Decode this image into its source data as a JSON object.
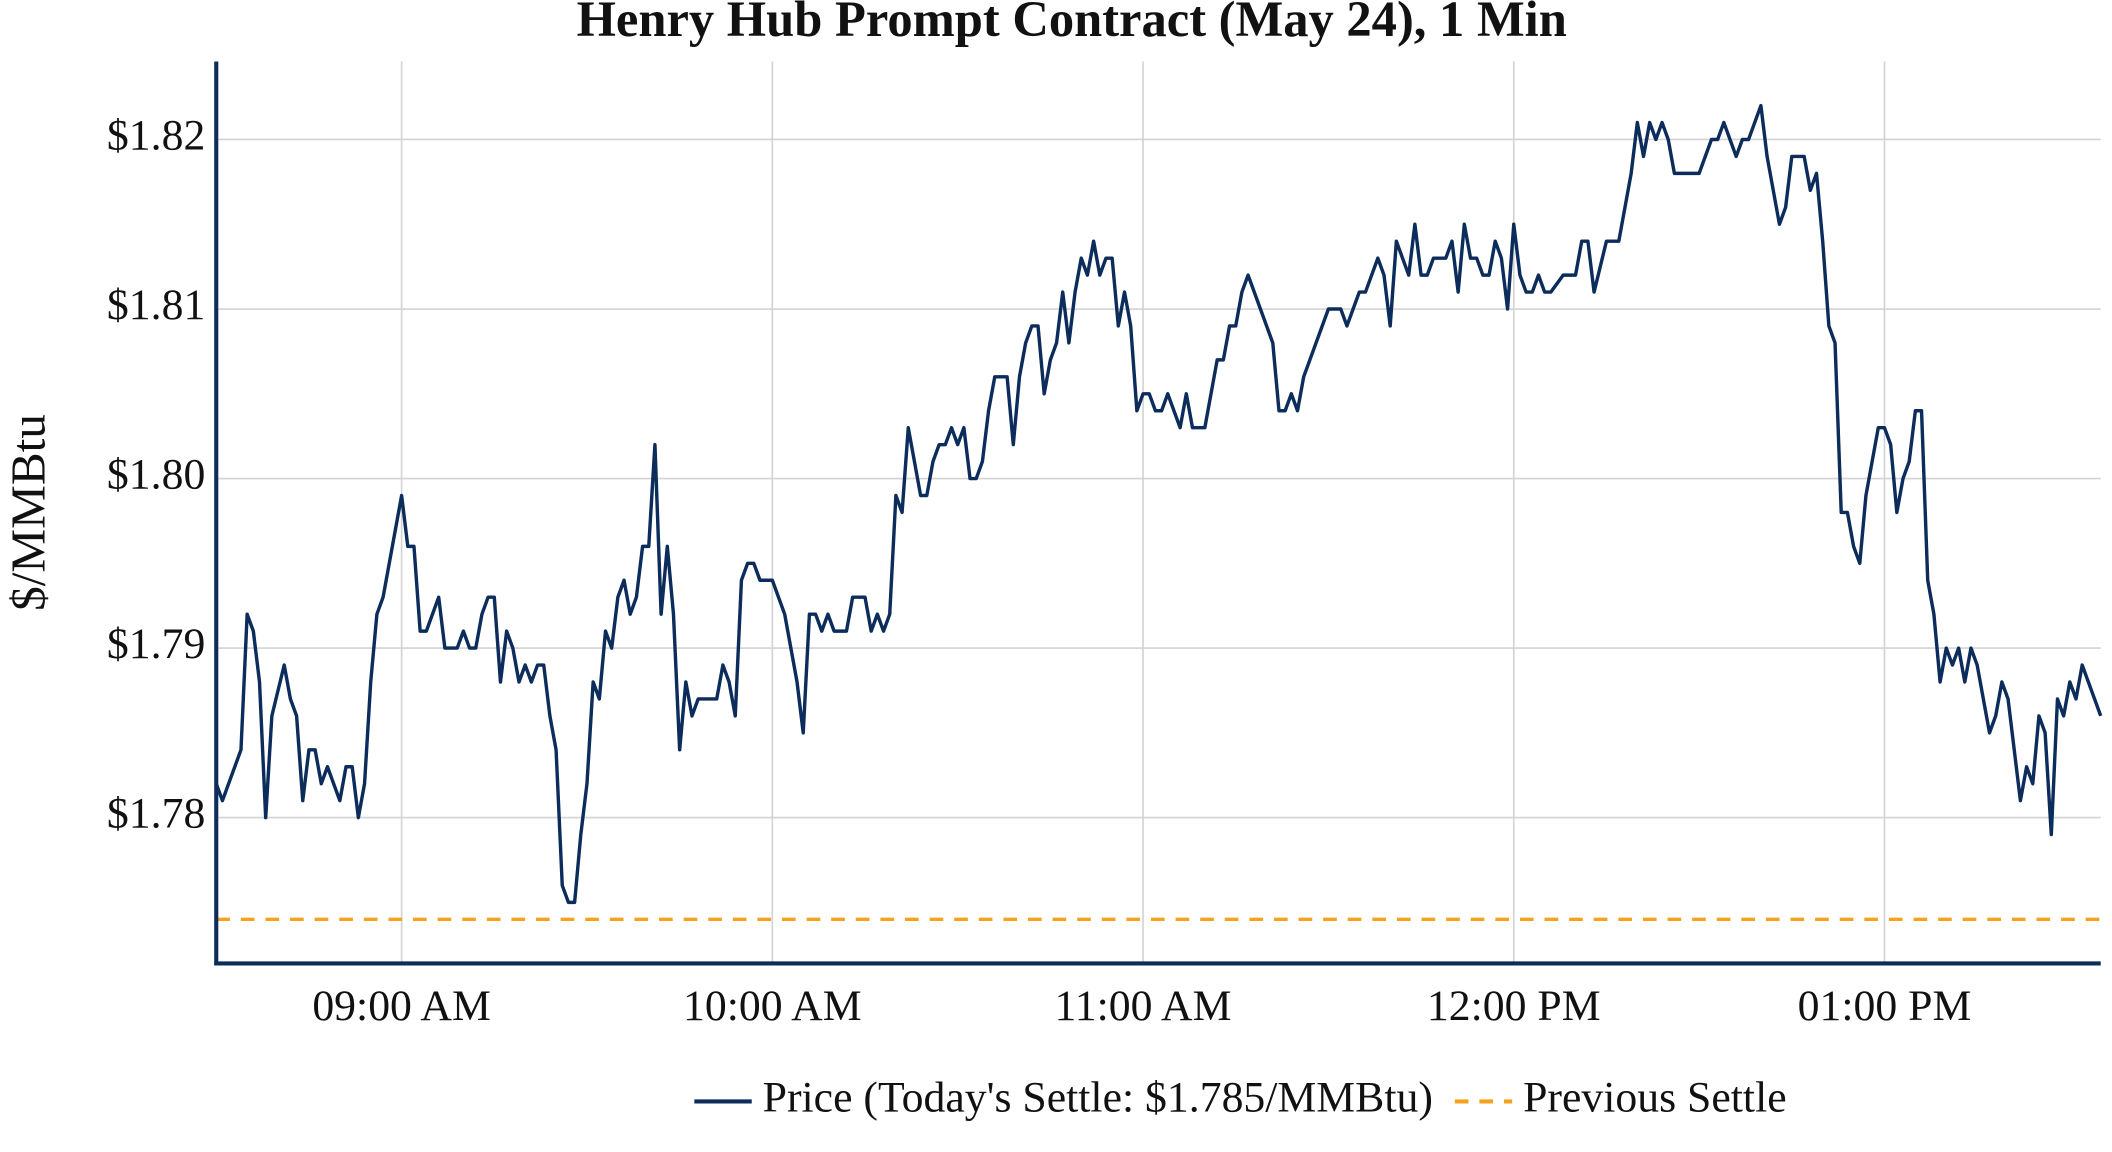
{
  "chart_data": {
    "type": "line",
    "title": "Henry Hub Prompt Contract (May 24), 1 Min",
    "y_label": "$/MMBtu",
    "grid": true,
    "legend": "bottom",
    "xlim": [
      "08:30",
      "13:35"
    ],
    "xticks": [
      {
        "value": "09:00",
        "label": "09:00 AM"
      },
      {
        "value": "10:00",
        "label": "10:00 AM"
      },
      {
        "value": "11:00",
        "label": "11:00 AM"
      },
      {
        "value": "12:00",
        "label": "12:00 PM"
      },
      {
        "value": "13:00",
        "label": "01:00 PM"
      }
    ],
    "ylim": [
      1.7714,
      1.8246
    ],
    "yticks": [
      {
        "value": 1.78,
        "label": "$1.78"
      },
      {
        "value": 1.79,
        "label": "$1.79"
      },
      {
        "value": 1.8,
        "label": "$1.80"
      },
      {
        "value": 1.81,
        "label": "$1.81"
      },
      {
        "value": 1.82,
        "label": "$1.82"
      }
    ],
    "series": [
      {
        "name": "Price (Today's Settle: $1.785/MMBtu)",
        "color": "#0c2c5c",
        "dash": false,
        "x": [
          "08:30",
          "08:31",
          "08:32",
          "08:34",
          "08:35",
          "08:36",
          "08:37",
          "08:38",
          "08:39",
          "08:41",
          "08:42",
          "08:43",
          "08:44",
          "08:45",
          "08:46",
          "08:47",
          "08:48",
          "08:50",
          "08:51",
          "08:52",
          "08:53",
          "08:54",
          "08:55",
          "08:56",
          "08:57",
          "09:00",
          "09:01",
          "09:02",
          "09:03",
          "09:04",
          "09:06",
          "09:07",
          "09:09",
          "09:10",
          "09:11",
          "09:12",
          "09:13",
          "09:14",
          "09:15",
          "09:16",
          "09:17",
          "09:18",
          "09:19",
          "09:20",
          "09:21",
          "09:22",
          "09:23",
          "09:24",
          "09:25",
          "09:26",
          "09:27",
          "09:28",
          "09:29",
          "09:30",
          "09:31",
          "09:32",
          "09:33",
          "09:34",
          "09:35",
          "09:36",
          "09:37",
          "09:38",
          "09:39",
          "09:40",
          "09:41",
          "09:42",
          "09:43",
          "09:44",
          "09:45",
          "09:46",
          "09:47",
          "09:48",
          "09:51",
          "09:52",
          "09:53",
          "09:54",
          "09:55",
          "09:56",
          "09:57",
          "09:58",
          "10:00",
          "10:02",
          "10:04",
          "10:05",
          "10:06",
          "10:07",
          "10:08",
          "10:09",
          "10:10",
          "10:12",
          "10:13",
          "10:15",
          "10:16",
          "10:17",
          "10:18",
          "10:19",
          "10:20",
          "10:21",
          "10:22",
          "10:23",
          "10:24",
          "10:25",
          "10:26",
          "10:27",
          "10:28",
          "10:29",
          "10:30",
          "10:31",
          "10:32",
          "10:33",
          "10:34",
          "10:35",
          "10:36",
          "10:38",
          "10:39",
          "10:40",
          "10:41",
          "10:42",
          "10:43",
          "10:44",
          "10:45",
          "10:46",
          "10:47",
          "10:48",
          "10:49",
          "10:50",
          "10:51",
          "10:52",
          "10:53",
          "10:54",
          "10:55",
          "10:56",
          "10:57",
          "10:58",
          "10:59",
          "11:00",
          "11:01",
          "11:02",
          "11:03",
          "11:04",
          "11:06",
          "11:07",
          "11:08",
          "11:10",
          "11:12",
          "11:13",
          "11:14",
          "11:15",
          "11:16",
          "11:17",
          "11:21",
          "11:22",
          "11:23",
          "11:24",
          "11:25",
          "11:26",
          "11:30",
          "11:32",
          "11:33",
          "11:34",
          "11:35",
          "11:36",
          "11:38",
          "11:39",
          "11:40",
          "11:41",
          "11:42",
          "11:43",
          "11:44",
          "11:45",
          "11:46",
          "11:47",
          "11:49",
          "11:50",
          "11:51",
          "11:52",
          "11:53",
          "11:54",
          "11:55",
          "11:56",
          "11:57",
          "11:58",
          "11:59",
          "12:00",
          "12:01",
          "12:02",
          "12:03",
          "12:04",
          "12:05",
          "12:06",
          "12:08",
          "12:10",
          "12:11",
          "12:12",
          "12:13",
          "12:15",
          "12:17",
          "12:19",
          "12:20",
          "12:21",
          "12:22",
          "12:23",
          "12:24",
          "12:25",
          "12:26",
          "12:30",
          "12:32",
          "12:33",
          "12:34",
          "12:36",
          "12:37",
          "12:38",
          "12:40",
          "12:41",
          "12:43",
          "12:44",
          "12:45",
          "12:47",
          "12:48",
          "12:49",
          "12:50",
          "12:51",
          "12:52",
          "12:53",
          "12:54",
          "12:55",
          "12:56",
          "12:57",
          "12:59",
          "13:00",
          "13:01",
          "13:02",
          "13:03",
          "13:04",
          "13:05",
          "13:06",
          "13:07",
          "13:08",
          "13:09",
          "13:10",
          "13:11",
          "13:12",
          "13:13",
          "13:14",
          "13:15",
          "13:17",
          "13:18",
          "13:19",
          "13:20",
          "13:22",
          "13:23",
          "13:24",
          "13:25",
          "13:26",
          "13:27",
          "13:28",
          "13:29",
          "13:30",
          "13:31",
          "13:32",
          "13:35"
        ],
        "values": [
          1.782,
          1.781,
          1.782,
          1.784,
          1.792,
          1.791,
          1.788,
          1.78,
          1.786,
          1.789,
          1.787,
          1.786,
          1.781,
          1.784,
          1.784,
          1.782,
          1.783,
          1.781,
          1.783,
          1.783,
          1.78,
          1.782,
          1.788,
          1.792,
          1.793,
          1.799,
          1.796,
          1.796,
          1.791,
          1.791,
          1.793,
          1.79,
          1.79,
          1.791,
          1.79,
          1.79,
          1.792,
          1.793,
          1.793,
          1.788,
          1.791,
          1.79,
          1.788,
          1.789,
          1.788,
          1.789,
          1.789,
          1.786,
          1.784,
          1.776,
          1.775,
          1.775,
          1.779,
          1.782,
          1.788,
          1.787,
          1.791,
          1.79,
          1.793,
          1.794,
          1.792,
          1.793,
          1.796,
          1.796,
          1.802,
          1.792,
          1.796,
          1.792,
          1.784,
          1.788,
          1.786,
          1.787,
          1.787,
          1.789,
          1.788,
          1.786,
          1.794,
          1.795,
          1.795,
          1.794,
          1.794,
          1.792,
          1.788,
          1.785,
          1.792,
          1.792,
          1.791,
          1.792,
          1.791,
          1.791,
          1.793,
          1.793,
          1.791,
          1.792,
          1.791,
          1.792,
          1.799,
          1.798,
          1.803,
          1.801,
          1.799,
          1.799,
          1.801,
          1.802,
          1.802,
          1.803,
          1.802,
          1.803,
          1.8,
          1.8,
          1.801,
          1.804,
          1.806,
          1.806,
          1.802,
          1.806,
          1.808,
          1.809,
          1.809,
          1.805,
          1.807,
          1.808,
          1.811,
          1.808,
          1.811,
          1.813,
          1.812,
          1.814,
          1.812,
          1.813,
          1.813,
          1.809,
          1.811,
          1.809,
          1.804,
          1.805,
          1.805,
          1.804,
          1.804,
          1.805,
          1.803,
          1.805,
          1.803,
          1.803,
          1.807,
          1.807,
          1.809,
          1.809,
          1.811,
          1.812,
          1.808,
          1.804,
          1.804,
          1.805,
          1.804,
          1.806,
          1.81,
          1.81,
          1.809,
          1.81,
          1.811,
          1.811,
          1.813,
          1.812,
          1.809,
          1.814,
          1.813,
          1.812,
          1.815,
          1.812,
          1.812,
          1.813,
          1.813,
          1.814,
          1.811,
          1.815,
          1.813,
          1.813,
          1.812,
          1.812,
          1.814,
          1.813,
          1.81,
          1.815,
          1.812,
          1.811,
          1.811,
          1.812,
          1.811,
          1.811,
          1.812,
          1.812,
          1.814,
          1.814,
          1.811,
          1.814,
          1.814,
          1.818,
          1.821,
          1.819,
          1.821,
          1.82,
          1.821,
          1.82,
          1.818,
          1.818,
          1.82,
          1.82,
          1.821,
          1.819,
          1.82,
          1.82,
          1.822,
          1.819,
          1.815,
          1.816,
          1.819,
          1.819,
          1.817,
          1.818,
          1.814,
          1.809,
          1.808,
          1.798,
          1.798,
          1.796,
          1.795,
          1.799,
          1.803,
          1.803,
          1.802,
          1.798,
          1.8,
          1.801,
          1.804,
          1.804,
          1.794,
          1.792,
          1.788,
          1.79,
          1.789,
          1.79,
          1.788,
          1.79,
          1.789,
          1.785,
          1.786,
          1.788,
          1.787,
          1.781,
          1.783,
          1.782,
          1.786,
          1.785,
          1.779,
          1.787,
          1.786,
          1.788,
          1.787,
          1.789,
          1.786
        ]
      },
      {
        "name": "Previous Settle",
        "color": "#f5a21f",
        "dash": true,
        "x": [
          "08:30",
          "13:35"
        ],
        "values": [
          1.774,
          1.774
        ]
      }
    ]
  }
}
